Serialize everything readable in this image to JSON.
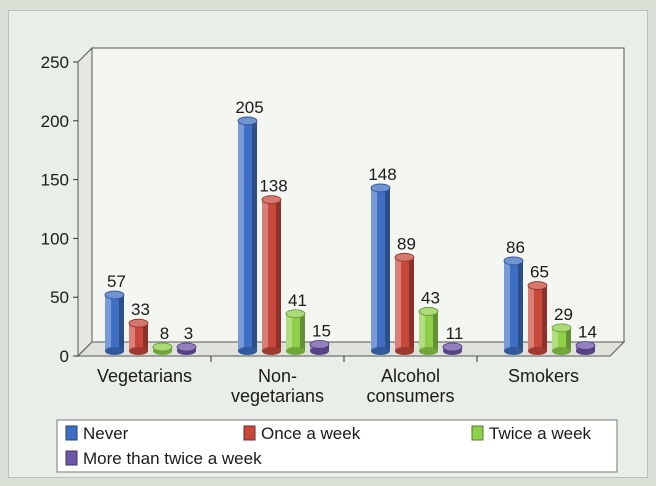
{
  "chart_data": {
    "type": "bar",
    "title": "",
    "xlabel": "",
    "ylabel": "",
    "ylim": [
      0,
      250
    ],
    "yticks": [
      0,
      50,
      100,
      150,
      200,
      250
    ],
    "grid": false,
    "legend_position": "bottom",
    "categories": [
      [
        "Vegetarians"
      ],
      [
        "Non-",
        "vegetarians"
      ],
      [
        "Alcohol",
        "consumers"
      ],
      [
        "Smokers"
      ]
    ],
    "series": [
      {
        "name": "Never",
        "values": [
          57,
          205,
          148,
          86
        ],
        "color": "#3f6fc4"
      },
      {
        "name": "Once a week",
        "values": [
          33,
          138,
          89,
          65
        ],
        "color": "#c8483c"
      },
      {
        "name": "Twice a week",
        "values": [
          8,
          41,
          43,
          29
        ],
        "color": "#8fcf4a"
      },
      {
        "name": "More than twice a week",
        "values": [
          3,
          15,
          11,
          14
        ],
        "color": "#6d55a8"
      }
    ]
  }
}
